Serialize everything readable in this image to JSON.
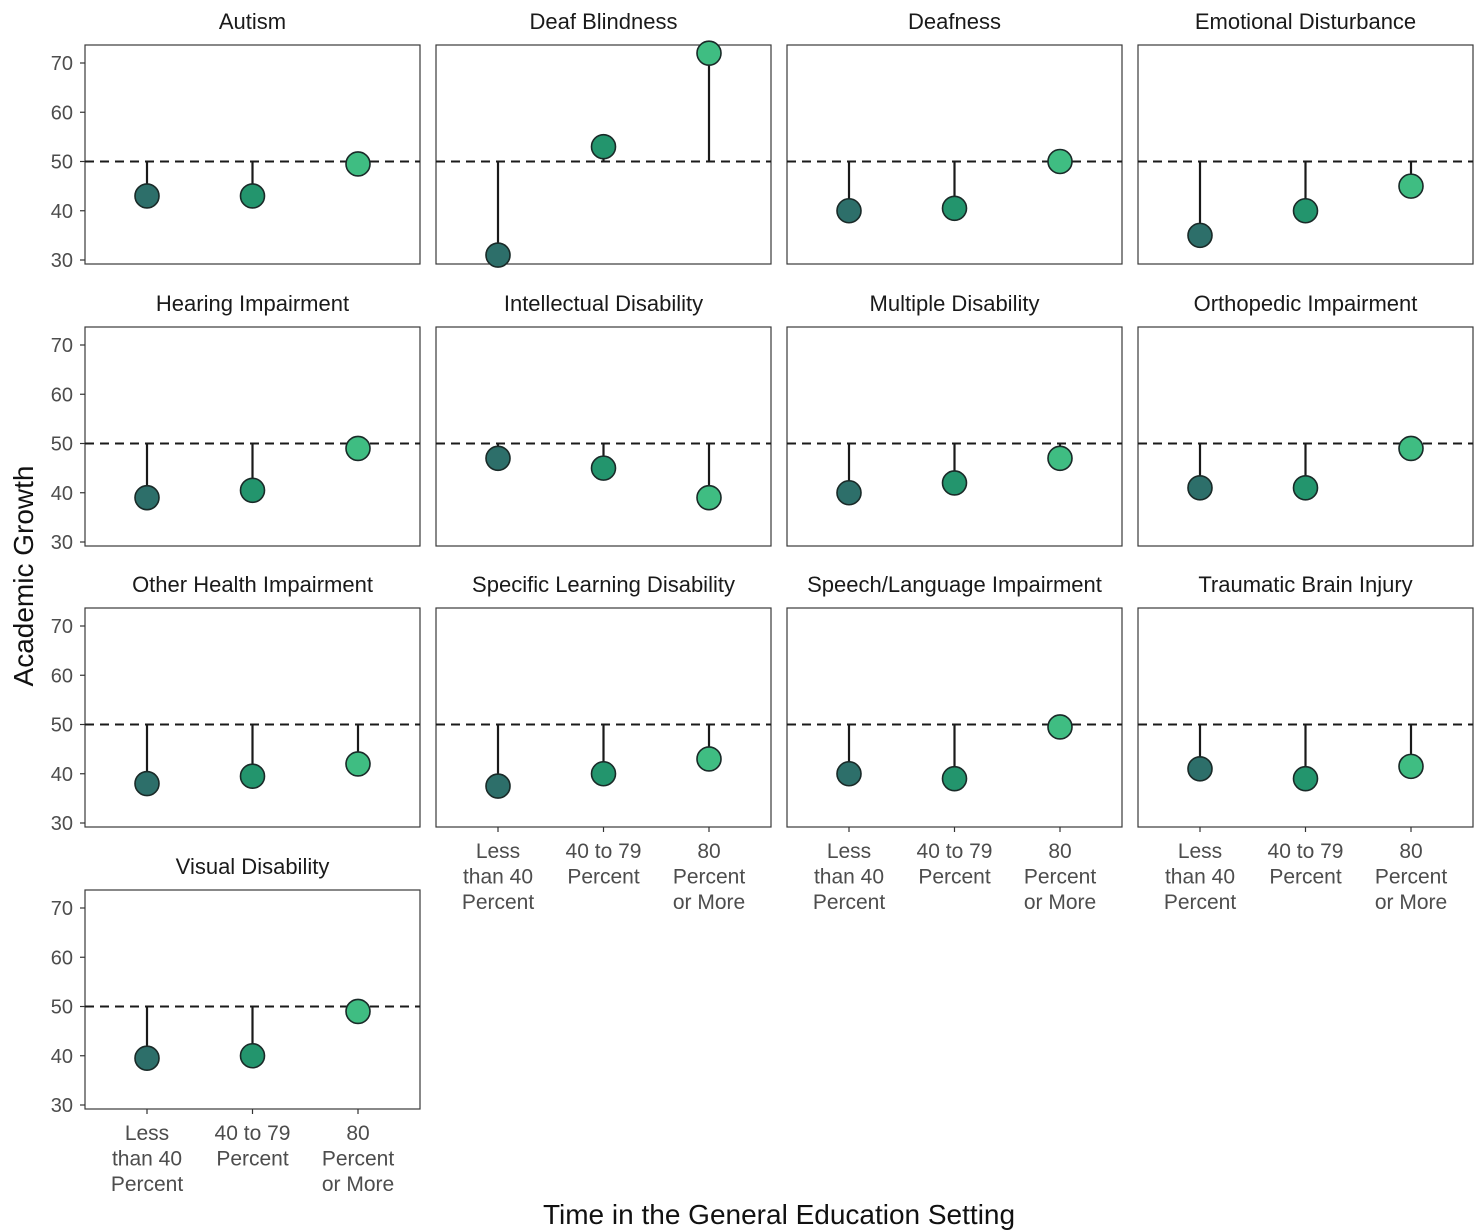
{
  "chart_data": {
    "type": "scatter",
    "subtype": "lollipop-facets",
    "xlabel": "Time in the General Education Setting",
    "ylabel": "Academic Growth",
    "categories": [
      "Less than 40 Percent",
      "40 to 79 Percent",
      "80 Percent or More"
    ],
    "category_lines": [
      [
        "Less",
        "than 40",
        "Percent"
      ],
      [
        "40 to 79",
        "Percent"
      ],
      [
        "80",
        "Percent",
        "or More"
      ]
    ],
    "ylim": [
      30,
      74
    ],
    "yticks": [
      30,
      40,
      50,
      60,
      70
    ],
    "reference_line": 50,
    "grid": false,
    "point_colors": [
      "#2d6f6a",
      "#23956d",
      "#3fbd82"
    ],
    "facets": [
      {
        "title": "Autism",
        "values": [
          43,
          43,
          49.5
        ]
      },
      {
        "title": "Deaf Blindness",
        "values": [
          31,
          53,
          72
        ]
      },
      {
        "title": "Deafness",
        "values": [
          40,
          40.5,
          50
        ]
      },
      {
        "title": "Emotional Disturbance",
        "values": [
          35,
          40,
          45
        ]
      },
      {
        "title": "Hearing Impairment",
        "values": [
          39,
          40.5,
          49
        ]
      },
      {
        "title": "Intellectual Disability",
        "values": [
          47,
          45,
          39
        ]
      },
      {
        "title": "Multiple Disability",
        "values": [
          40,
          42,
          47
        ]
      },
      {
        "title": "Orthopedic Impairment",
        "values": [
          41,
          41,
          49
        ]
      },
      {
        "title": "Other Health Impairment",
        "values": [
          38,
          39.5,
          42
        ]
      },
      {
        "title": "Specific Learning Disability",
        "values": [
          37.5,
          40,
          43
        ]
      },
      {
        "title": "Speech/Language Impairment",
        "values": [
          40,
          39,
          49.5
        ]
      },
      {
        "title": "Traumatic Brain Injury",
        "values": [
          41,
          39,
          41.5
        ]
      },
      {
        "title": "Visual Disability",
        "values": [
          39.5,
          40,
          49
        ]
      }
    ]
  }
}
